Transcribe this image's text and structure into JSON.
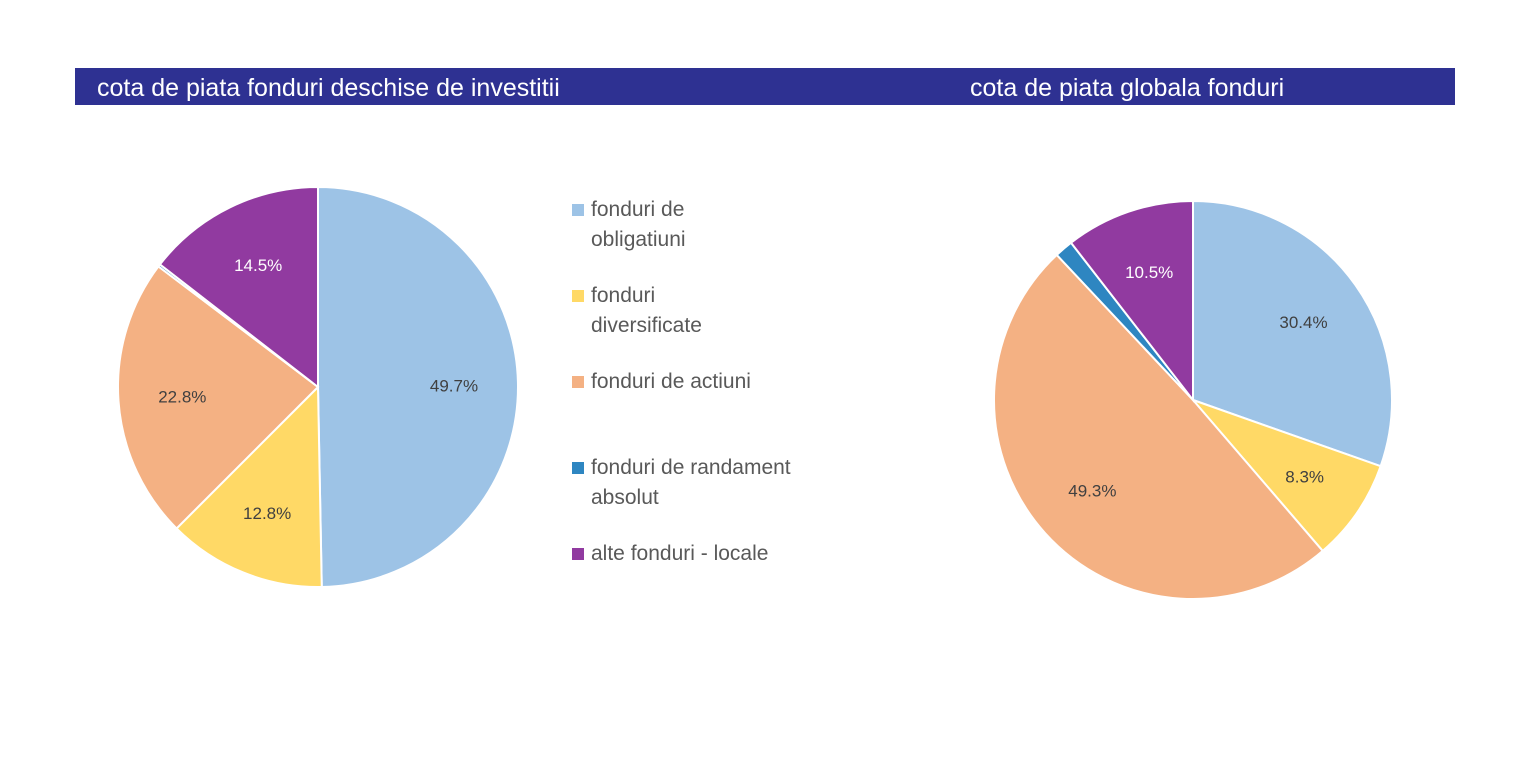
{
  "titles": {
    "left": "cota de piata fonduri deschise de investitii",
    "right": "cota de piata globala fonduri"
  },
  "chart_data": [
    {
      "type": "pie",
      "title": "cota de piata fonduri deschise de investitii",
      "categories": [
        "fonduri de obligatiuni",
        "fonduri diversificate",
        "fonduri de actiuni",
        "fonduri de randament absolut",
        "alte fonduri - locale"
      ],
      "values": [
        49.7,
        12.8,
        22.8,
        0.2,
        14.5
      ],
      "labels": [
        "49.7%",
        "12.8%",
        "22.8%",
        "",
        "14.5%"
      ],
      "colors": [
        "#9dc3e6",
        "#ffd966",
        "#f4b183",
        "#2e86c1",
        "#913aa0"
      ],
      "label_colors": [
        "#404040",
        "#404040",
        "#404040",
        "",
        "#ffffff"
      ],
      "legend_position": "right"
    },
    {
      "type": "pie",
      "title": "cota de piata globala fonduri",
      "categories": [
        "fonduri de obligatiuni",
        "fonduri diversificate",
        "fonduri de actiuni",
        "fonduri de randament absolut",
        "alte fonduri - locale"
      ],
      "values": [
        30.4,
        8.3,
        49.3,
        1.5,
        10.5
      ],
      "labels": [
        "30.4%",
        "8.3%",
        "49.3%",
        "",
        "10.5%"
      ],
      "colors": [
        "#9dc3e6",
        "#ffd966",
        "#f4b183",
        "#2e86c1",
        "#913aa0"
      ],
      "label_colors": [
        "#404040",
        "#404040",
        "#404040",
        "",
        "#ffffff"
      ]
    }
  ],
  "legend": [
    {
      "label": "fonduri de obligatiuni",
      "color": "#9dc3e6"
    },
    {
      "label": "fonduri diversificate",
      "color": "#ffd966"
    },
    {
      "label": "fonduri de actiuni",
      "color": "#f4b183"
    },
    {
      "label": "fonduri de randament absolut",
      "color": "#2e86c1"
    },
    {
      "label": "alte fonduri - locale",
      "color": "#913aa0"
    }
  ]
}
